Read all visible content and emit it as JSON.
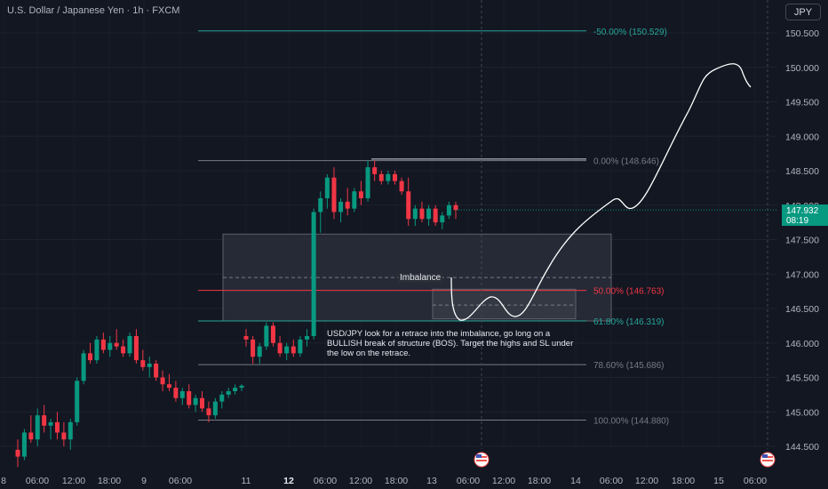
{
  "header": {
    "title": "U.S. Dollar / Japanese Yen · 1h · FXCM",
    "currency_button": "JPY"
  },
  "price_tag": {
    "price": "147.932",
    "countdown": "08:19"
  },
  "annotation_text": "USD/JPY look for a retrace into the imbalance, go long on a BULLISH break of structure (BOS). Target the highs and SL under the low on the retrace.",
  "imbalance_label": "Imbalance",
  "fib_levels": [
    {
      "label": "-50.00% (150.529)",
      "price": 150.529,
      "color": "#26a69a"
    },
    {
      "label": "0.00% (148.646)",
      "price": 148.646,
      "color": "#787b86"
    },
    {
      "label": "50.00% (146.763)",
      "price": 146.763,
      "color": "#f23645"
    },
    {
      "label": "61.80% (146.319)",
      "price": 146.319,
      "color": "#26a69a"
    },
    {
      "label": "78.60% (145.686)",
      "price": 145.686,
      "color": "#787b86"
    },
    {
      "label": "100.00% (144.880)",
      "price": 144.88,
      "color": "#787b86"
    }
  ],
  "y_axis": {
    "ticks": [
      "150.500",
      "150.000",
      "149.500",
      "149.000",
      "148.500",
      "148.000",
      "147.500",
      "147.000",
      "146.500",
      "146.000",
      "145.500",
      "145.000",
      "144.500"
    ],
    "range": [
      144.25,
      150.78
    ]
  },
  "x_axis": {
    "ticks": [
      "8",
      "06:00",
      "12:00",
      "18:00",
      "9",
      "06:00",
      "11",
      "12",
      "06:00",
      "12:00",
      "18:00",
      "13",
      "06:00",
      "12:00",
      "18:00",
      "14",
      "06:00",
      "12:00",
      "18:00",
      "15",
      "06:00"
    ]
  },
  "colors": {
    "up": "#089981",
    "down": "#f23645",
    "background": "#131722"
  },
  "chart_data": {
    "type": "candlestick",
    "title": "U.S. Dollar / Japanese Yen · 1h · FXCM",
    "ylim": [
      144.25,
      150.78
    ],
    "candles": [
      [
        144.45,
        144.6,
        144.2,
        144.35
      ],
      [
        144.35,
        144.75,
        144.3,
        144.7
      ],
      [
        144.7,
        144.95,
        144.55,
        144.6
      ],
      [
        144.6,
        145.05,
        144.5,
        144.95
      ],
      [
        144.95,
        145.1,
        144.7,
        144.8
      ],
      [
        144.8,
        144.9,
        144.6,
        144.85
      ],
      [
        144.85,
        145.0,
        144.6,
        144.7
      ],
      [
        144.7,
        144.85,
        144.5,
        144.6
      ],
      [
        144.6,
        144.9,
        144.45,
        144.85
      ],
      [
        144.85,
        145.5,
        144.8,
        145.45
      ],
      [
        145.45,
        145.9,
        145.4,
        145.85
      ],
      [
        145.85,
        146.0,
        145.7,
        145.75
      ],
      [
        145.75,
        146.1,
        145.7,
        146.05
      ],
      [
        146.05,
        146.15,
        145.85,
        145.9
      ],
      [
        145.9,
        146.1,
        145.8,
        146.0
      ],
      [
        146.0,
        146.2,
        145.9,
        145.95
      ],
      [
        145.95,
        146.05,
        145.8,
        145.85
      ],
      [
        145.85,
        146.15,
        145.8,
        146.1
      ],
      [
        146.1,
        146.2,
        145.7,
        145.75
      ],
      [
        145.75,
        145.9,
        145.6,
        145.65
      ],
      [
        145.65,
        145.8,
        145.5,
        145.7
      ],
      [
        145.7,
        145.75,
        145.45,
        145.5
      ],
      [
        145.5,
        145.6,
        145.3,
        145.4
      ],
      [
        145.4,
        145.55,
        145.3,
        145.35
      ],
      [
        145.35,
        145.45,
        145.15,
        145.2
      ],
      [
        145.2,
        145.35,
        145.1,
        145.3
      ],
      [
        145.3,
        145.4,
        145.05,
        145.1
      ],
      [
        145.1,
        145.25,
        145.0,
        145.2
      ],
      [
        145.2,
        145.3,
        145.0,
        145.05
      ],
      [
        145.05,
        145.15,
        144.85,
        144.95
      ],
      [
        144.95,
        145.2,
        144.9,
        145.15
      ],
      [
        145.15,
        145.3,
        145.05,
        145.25
      ],
      [
        145.25,
        145.35,
        145.2,
        145.3
      ],
      [
        145.3,
        145.4,
        145.25,
        145.35
      ],
      [
        145.35,
        145.4,
        145.3,
        145.38
      ],
      [
        146.1,
        146.2,
        145.95,
        146.05
      ],
      [
        146.05,
        146.1,
        145.7,
        145.8
      ],
      [
        145.8,
        146.0,
        145.7,
        145.95
      ],
      [
        145.95,
        146.3,
        145.9,
        146.25
      ],
      [
        146.25,
        146.3,
        145.95,
        146.0
      ],
      [
        146.0,
        146.1,
        145.8,
        145.85
      ],
      [
        145.85,
        146.0,
        145.75,
        145.95
      ],
      [
        145.95,
        146.05,
        145.8,
        145.85
      ],
      [
        145.85,
        146.1,
        145.8,
        146.05
      ],
      [
        146.05,
        146.2,
        145.95,
        146.1
      ],
      [
        146.1,
        147.95,
        146.05,
        147.9
      ],
      [
        147.9,
        148.2,
        147.6,
        148.1
      ],
      [
        148.1,
        148.45,
        147.95,
        148.4
      ],
      [
        148.4,
        148.55,
        147.8,
        147.9
      ],
      [
        147.9,
        148.1,
        147.75,
        148.05
      ],
      [
        148.05,
        148.25,
        147.85,
        147.95
      ],
      [
        147.95,
        148.25,
        147.9,
        148.2
      ],
      [
        148.2,
        148.35,
        148.0,
        148.1
      ],
      [
        148.1,
        148.65,
        148.05,
        148.55
      ],
      [
        148.55,
        148.65,
        148.35,
        148.45
      ],
      [
        148.45,
        148.5,
        148.3,
        148.35
      ],
      [
        148.35,
        148.5,
        148.3,
        148.45
      ],
      [
        148.45,
        148.5,
        148.3,
        148.35
      ],
      [
        148.35,
        148.4,
        148.15,
        148.2
      ],
      [
        148.2,
        148.4,
        147.7,
        147.8
      ],
      [
        147.8,
        148.0,
        147.7,
        147.95
      ],
      [
        147.95,
        148.05,
        147.75,
        147.8
      ],
      [
        147.8,
        148.0,
        147.7,
        147.95
      ],
      [
        147.95,
        148.0,
        147.7,
        147.75
      ],
      [
        147.75,
        147.9,
        147.65,
        147.85
      ],
      [
        147.85,
        148.05,
        147.8,
        148.0
      ],
      [
        148.0,
        148.05,
        147.8,
        147.93
      ]
    ]
  }
}
